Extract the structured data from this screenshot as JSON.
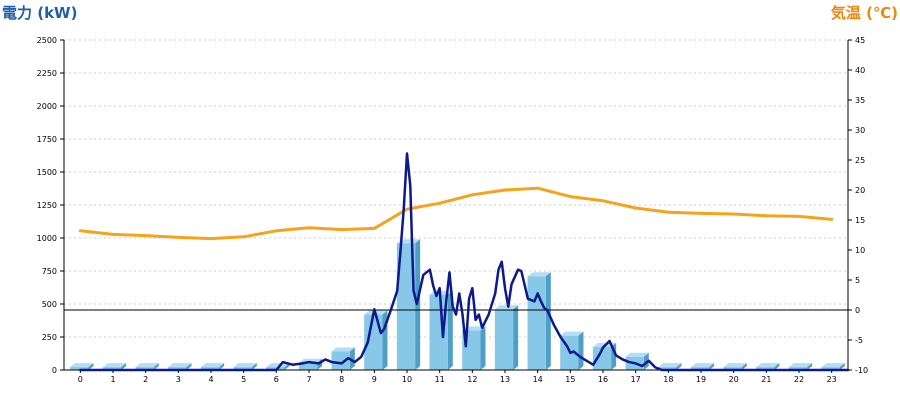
{
  "chart_data": {
    "type": "bar",
    "y_left_title": "電力 (kW)",
    "y_right_title": "気温 (℃)",
    "colors": {
      "left_title": "#1f5fa8",
      "right_title": "#f0860a",
      "bar": "#87c8e8",
      "bar_side": "#4f9ec6",
      "bar_top": "#b5def3",
      "power_line": "#0c1a8c",
      "temp_line": "#f7a21b",
      "grid": "#bbbbbb"
    },
    "grid": true,
    "categories": [
      "0",
      "1",
      "2",
      "3",
      "4",
      "5",
      "6",
      "7",
      "8",
      "9",
      "10",
      "11",
      "12",
      "13",
      "14",
      "15",
      "16",
      "17",
      "18",
      "19",
      "20",
      "21",
      "22",
      "23"
    ],
    "y_left": {
      "min": 0,
      "max": 2500,
      "ticks": [
        "0",
        "250",
        "500",
        "750",
        "1000",
        "1250",
        "1500",
        "1750",
        "2000",
        "2250",
        "2500"
      ]
    },
    "y_right": {
      "min": -10,
      "max": 45,
      "ticks": [
        "-10",
        "-5",
        "0",
        "5",
        "10",
        "15",
        "20",
        "25",
        "30",
        "35",
        "40",
        "45"
      ]
    },
    "bars": {
      "axis": "left",
      "values": [
        22,
        22,
        22,
        22,
        22,
        22,
        22,
        55,
        140,
        420,
        960,
        570,
        300,
        460,
        710,
        260,
        175,
        100,
        22,
        22,
        22,
        22,
        22,
        22
      ]
    },
    "power_line": {
      "axis": "left",
      "x": [
        0,
        0.5,
        1,
        1.5,
        2,
        2.5,
        3,
        3.5,
        4,
        4.5,
        5,
        5.5,
        5.8,
        6,
        6.2,
        6.5,
        6.8,
        7,
        7.3,
        7.5,
        7.7,
        8,
        8.2,
        8.4,
        8.6,
        8.8,
        9,
        9.2,
        9.3,
        9.5,
        9.7,
        9.8,
        9.9,
        10,
        10.1,
        10.2,
        10.3,
        10.5,
        10.7,
        10.8,
        10.9,
        11,
        11.1,
        11.2,
        11.3,
        11.4,
        11.5,
        11.6,
        11.7,
        11.8,
        11.9,
        12,
        12.1,
        12.2,
        12.3,
        12.5,
        12.7,
        12.8,
        12.9,
        13,
        13.1,
        13.2,
        13.4,
        13.5,
        13.7,
        13.9,
        14,
        14.1,
        14.2,
        14.3,
        14.5,
        14.7,
        14.9,
        15,
        15.1,
        15.2,
        15.3,
        15.5,
        15.7,
        15.9,
        16,
        16.2,
        16.4,
        16.6,
        16.8,
        17,
        17.2,
        17.4,
        17.6,
        17.8,
        18,
        18.5,
        19,
        19.5,
        20,
        20.5,
        21,
        21.5,
        22,
        22.5,
        23,
        23.5
      ],
      "values": [
        0,
        0,
        0,
        0,
        0,
        0,
        0,
        0,
        0,
        0,
        0,
        0,
        0,
        0,
        60,
        40,
        50,
        60,
        50,
        80,
        60,
        50,
        90,
        60,
        100,
        210,
        460,
        280,
        310,
        450,
        600,
        900,
        1220,
        1640,
        1400,
        600,
        500,
        720,
        760,
        640,
        560,
        620,
        250,
        520,
        740,
        480,
        420,
        580,
        420,
        180,
        540,
        620,
        380,
        420,
        320,
        420,
        580,
        760,
        820,
        620,
        480,
        650,
        760,
        750,
        540,
        520,
        580,
        520,
        470,
        450,
        340,
        250,
        180,
        130,
        140,
        120,
        100,
        70,
        40,
        120,
        170,
        220,
        110,
        80,
        60,
        50,
        30,
        70,
        20,
        0,
        0,
        0,
        0,
        0,
        0,
        0,
        0,
        0,
        0,
        0,
        0,
        0
      ]
    },
    "temp_line": {
      "axis": "right",
      "x": [
        0,
        1,
        2,
        3,
        4,
        5,
        6,
        7,
        8,
        9,
        10,
        11,
        12,
        13,
        14,
        15,
        16,
        17,
        18,
        19,
        20,
        21,
        22,
        23
      ],
      "values": [
        13.2,
        12.6,
        12.4,
        12.1,
        11.9,
        12.2,
        13.2,
        13.7,
        13.4,
        13.6,
        16.8,
        17.8,
        19.2,
        20.0,
        20.3,
        18.9,
        18.2,
        17.0,
        16.3,
        16.1,
        16.0,
        15.7,
        15.6,
        15.1
      ]
    }
  }
}
